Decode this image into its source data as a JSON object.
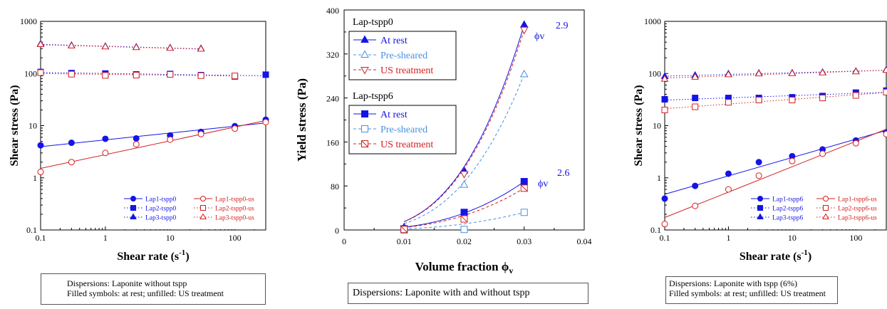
{
  "chart_data": [
    {
      "type": "scatter",
      "xlabel": "Shear rate (s",
      "xlabel_sup": "-1",
      "xlabel_tail": ")",
      "ylabel": "Shear stress (Pa)",
      "xscale": "log",
      "yscale": "log",
      "xlim": [
        0.1,
        300
      ],
      "ylim": [
        0.1,
        1000
      ],
      "x_ticks": [
        "0.1",
        "1",
        "10",
        "100"
      ],
      "y_ticks": [
        "0.1",
        "1",
        "10",
        "100",
        "1000"
      ],
      "x": [
        0.1,
        0.3,
        1,
        3,
        10,
        30,
        100,
        300
      ],
      "legend_position": "bottom-right",
      "series": [
        {
          "name": "Lap1-tspp0",
          "color": "#1414e6",
          "marker": "circle",
          "filled": true,
          "values": [
            4.2,
            4.7,
            5.6,
            5.7,
            6.5,
            7.6,
            9.8,
            13.0
          ]
        },
        {
          "name": "Lap1-tspp0-us",
          "color": "#d42020",
          "marker": "circle",
          "filled": false,
          "values": [
            1.3,
            2.0,
            3.0,
            4.4,
            5.4,
            6.9,
            8.8,
            11.7
          ]
        },
        {
          "name": "Lap2-tspp0",
          "color": "#1414e6",
          "marker": "square",
          "filled": true,
          "values": [
            107,
            102,
            100,
            96,
            98,
            93,
            88,
            95
          ]
        },
        {
          "name": "Lap2-tspp0-us",
          "color": "#d42020",
          "marker": "square",
          "filled": false,
          "values": [
            104,
            97,
            92,
            93,
            96,
            91,
            90,
            null
          ]
        },
        {
          "name": "Lap3-tspp0",
          "color": "#1414e6",
          "marker": "triangle",
          "filled": true,
          "values": [
            370,
            345,
            330,
            320,
            310,
            300,
            null,
            null
          ]
        },
        {
          "name": "Lap3-tspp0-us",
          "color": "#d42020",
          "marker": "triangle",
          "filled": false,
          "values": [
            360,
            340,
            325,
            315,
            305,
            295,
            null,
            null
          ]
        }
      ],
      "caption": [
        "Dispersions: Laponite without tspp",
        "Filled symbols: at rest; unfilled: US treatment"
      ]
    },
    {
      "type": "scatter",
      "xlabel": "Volume fraction ϕ",
      "xlabel_sub": "v",
      "ylabel": "Yield stress (Pa)",
      "xlim": [
        0,
        0.04
      ],
      "ylim": [
        0,
        400
      ],
      "x_ticks": [
        "0",
        "0.01",
        "0.02",
        "0.03",
        "0.04"
      ],
      "y_ticks": [
        "0",
        "80",
        "160",
        "240",
        "320",
        "400"
      ],
      "x": [
        0.01,
        0.02,
        0.03
      ],
      "groups": [
        {
          "title": "Lap-tspp0",
          "fit_label": "ϕv",
          "fit_exponent": "2.9",
          "series": [
            {
              "name": "At rest",
              "color": "#1414e6",
              "marker": "triangle",
              "filled": true,
              "values": [
                5,
                108,
                373
              ]
            },
            {
              "name": "Pre-sheared",
              "color": "#4a90e2",
              "marker": "triangle",
              "filled": false,
              "values": [
                2,
                82,
                283
              ]
            },
            {
              "name": "US treatment",
              "color": "#d42020",
              "marker": "triangle-down",
              "filled": false,
              "values": [
                3,
                102,
                364
              ]
            }
          ]
        },
        {
          "title": "Lap-tspp6",
          "fit_label": "ϕv",
          "fit_exponent": "2.6",
          "series": [
            {
              "name": "At rest",
              "color": "#1414e6",
              "marker": "square",
              "filled": true,
              "values": [
                2,
                32,
                88
              ]
            },
            {
              "name": "Pre-sheared",
              "color": "#4a90e2",
              "marker": "square",
              "filled": false,
              "values": [
                0,
                1,
                32
              ]
            },
            {
              "name": "US treatment",
              "color": "#d42020",
              "marker": "square-x",
              "filled": false,
              "values": [
                1,
                20,
                76
              ]
            }
          ]
        }
      ],
      "caption": [
        "Dispersions: Laponite with and without tspp"
      ]
    },
    {
      "type": "scatter",
      "xlabel": "Shear rate (s",
      "xlabel_sup": "-1",
      "xlabel_tail": ")",
      "ylabel": "Shear stress (Pa)",
      "xscale": "log",
      "yscale": "log",
      "xlim": [
        0.1,
        300
      ],
      "ylim": [
        0.1,
        1000
      ],
      "x_ticks": [
        "0.1",
        "1",
        "10",
        "100"
      ],
      "y_ticks": [
        "0.1",
        "1",
        "10",
        "100",
        "1000"
      ],
      "x": [
        0.1,
        0.3,
        1,
        3,
        10,
        30,
        100,
        300
      ],
      "legend_position": "bottom-right",
      "series": [
        {
          "name": "Lap1-tspp6",
          "color": "#1414e6",
          "marker": "circle",
          "filled": true,
          "values": [
            0.4,
            0.7,
            1.2,
            2.0,
            2.6,
            3.5,
            5.2,
            7.5
          ]
        },
        {
          "name": "Lap1-tspp6-us",
          "color": "#d42020",
          "marker": "circle",
          "filled": false,
          "values": [
            0.13,
            0.29,
            0.6,
            1.1,
            2.1,
            2.9,
            4.6,
            6.9
          ]
        },
        {
          "name": "Lap2-tspp6",
          "color": "#1414e6",
          "marker": "square",
          "filled": true,
          "values": [
            32,
            34,
            34,
            34,
            35,
            37,
            43,
            47
          ]
        },
        {
          "name": "Lap2-tspp6-us",
          "color": "#d42020",
          "marker": "square",
          "filled": false,
          "values": [
            20,
            23,
            28,
            31,
            31,
            34,
            38,
            44
          ]
        },
        {
          "name": "Lap3-tspp6",
          "color": "#1414e6",
          "marker": "triangle",
          "filled": true,
          "values": [
            88,
            92,
            98,
            101,
            102,
            105,
            110,
            118
          ]
        },
        {
          "name": "Lap3-tspp6-us",
          "color": "#d42020",
          "marker": "triangle",
          "filled": false,
          "values": [
            78,
            85,
            95,
            99,
            100,
            103,
            108,
            115
          ]
        }
      ],
      "caption": [
        "Dispersions: Laponite with tspp (6%)",
        "Filled symbols: at rest; unfilled: US treatment"
      ]
    }
  ]
}
